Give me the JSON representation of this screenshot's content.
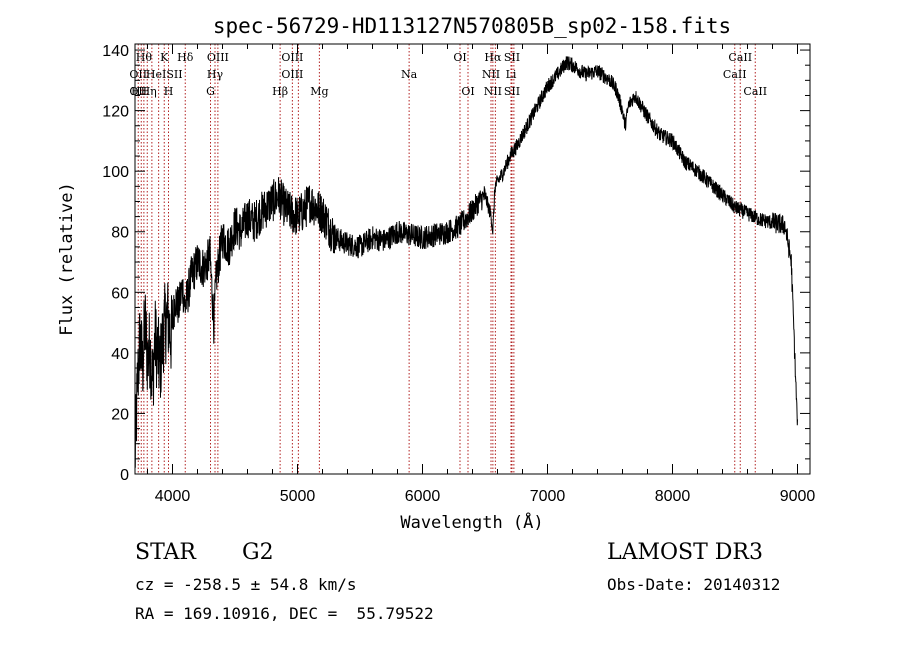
{
  "chart_data": {
    "type": "line",
    "title": "spec-56729-HD113127N570805B_sp02-158.fits",
    "xlabel": "Wavelength (Å)",
    "ylabel": "Flux (relative)",
    "xlim": [
      3700,
      9100
    ],
    "ylim": [
      0,
      142
    ],
    "xticks": [
      4000,
      5000,
      6000,
      7000,
      8000,
      9000
    ],
    "yticks": [
      0,
      20,
      40,
      60,
      80,
      100,
      120,
      140
    ],
    "series": [
      {
        "name": "spectrum",
        "x": [
          3700,
          3720,
          3740,
          3760,
          3780,
          3800,
          3820,
          3840,
          3860,
          3880,
          3900,
          3930,
          3960,
          3990,
          4020,
          4050,
          4080,
          4100,
          4150,
          4200,
          4250,
          4300,
          4330,
          4350,
          4400,
          4450,
          4500,
          4550,
          4600,
          4650,
          4700,
          4750,
          4800,
          4850,
          4900,
          4950,
          5000,
          5050,
          5100,
          5150,
          5200,
          5300,
          5400,
          5500,
          5600,
          5700,
          5800,
          5900,
          6000,
          6100,
          6200,
          6300,
          6400,
          6450,
          6500,
          6550,
          6563,
          6580,
          6650,
          6700,
          6750,
          6800,
          6900,
          7000,
          7100,
          7150,
          7200,
          7300,
          7400,
          7500,
          7550,
          7600,
          7620,
          7650,
          7700,
          7800,
          7900,
          8000,
          8100,
          8200,
          8300,
          8400,
          8500,
          8600,
          8700,
          8800,
          8900,
          8950,
          9000
        ],
        "values": [
          5,
          30,
          45,
          35,
          50,
          38,
          42,
          30,
          45,
          40,
          35,
          48,
          52,
          45,
          58,
          55,
          62,
          55,
          65,
          70,
          68,
          72,
          50,
          65,
          78,
          75,
          82,
          80,
          85,
          83,
          86,
          88,
          90,
          92,
          88,
          86,
          85,
          87,
          90,
          88,
          86,
          78,
          76,
          75,
          78,
          77,
          80,
          79,
          78,
          79,
          80,
          82,
          87,
          90,
          92,
          85,
          80,
          95,
          100,
          105,
          108,
          112,
          120,
          128,
          133,
          136,
          135,
          132,
          133,
          130,
          127,
          120,
          115,
          122,
          125,
          118,
          112,
          110,
          103,
          100,
          96,
          92,
          88,
          86,
          84,
          83,
          82,
          70,
          15
        ]
      }
    ],
    "lines": [
      {
        "wave": 3726,
        "labels": [
          {
            "text": "OII",
            "row": 2
          },
          {
            "text": "OII",
            "row": 3
          }
        ]
      },
      {
        "wave": 3750,
        "labels": []
      },
      {
        "wave": 3771,
        "labels": [
          {
            "text": "Hθ",
            "row": 1
          },
          {
            "text": "HHη",
            "row": 3
          }
        ]
      },
      {
        "wave": 3798,
        "labels": []
      },
      {
        "wave": 3835,
        "labels": []
      },
      {
        "wave": 3889,
        "labels": []
      },
      {
        "wave": 3934,
        "labels": [
          {
            "text": "K",
            "row": 1
          },
          {
            "text": "HeISII",
            "row": 2
          }
        ]
      },
      {
        "wave": 3968,
        "labels": [
          {
            "text": "H",
            "row": 3
          }
        ]
      },
      {
        "wave": 4102,
        "labels": [
          {
            "text": "Hδ",
            "row": 1
          }
        ]
      },
      {
        "wave": 4304,
        "labels": [
          {
            "text": "G",
            "row": 3
          }
        ]
      },
      {
        "wave": 4340,
        "labels": [
          {
            "text": "Hγ",
            "row": 2
          }
        ]
      },
      {
        "wave": 4363,
        "labels": [
          {
            "text": "OIII",
            "row": 1
          }
        ]
      },
      {
        "wave": 4861,
        "labels": [
          {
            "text": "Hβ",
            "row": 3
          }
        ]
      },
      {
        "wave": 4959,
        "labels": [
          {
            "text": "OIII",
            "row": 1
          },
          {
            "text": "OIII",
            "row": 2
          }
        ]
      },
      {
        "wave": 5007,
        "labels": []
      },
      {
        "wave": 5175,
        "labels": [
          {
            "text": "Mg",
            "row": 3
          }
        ]
      },
      {
        "wave": 5893,
        "labels": [
          {
            "text": "Na",
            "row": 2
          }
        ]
      },
      {
        "wave": 6300,
        "labels": [
          {
            "text": "OI",
            "row": 1
          }
        ]
      },
      {
        "wave": 6364,
        "labels": [
          {
            "text": "OI",
            "row": 3
          }
        ]
      },
      {
        "wave": 6548,
        "labels": [
          {
            "text": "NII",
            "row": 2
          }
        ]
      },
      {
        "wave": 6563,
        "labels": [
          {
            "text": "Hα",
            "row": 1
          },
          {
            "text": "NII",
            "row": 3
          }
        ]
      },
      {
        "wave": 6583,
        "labels": []
      },
      {
        "wave": 6708,
        "labels": [
          {
            "text": "Li",
            "row": 2
          }
        ]
      },
      {
        "wave": 6716,
        "labels": [
          {
            "text": "SII",
            "row": 1
          },
          {
            "text": "SII",
            "row": 3
          }
        ]
      },
      {
        "wave": 6731,
        "labels": []
      },
      {
        "wave": 8498,
        "labels": [
          {
            "text": "CaII",
            "row": 2
          }
        ]
      },
      {
        "wave": 8542,
        "labels": [
          {
            "text": "CaII",
            "row": 1
          }
        ]
      },
      {
        "wave": 8662,
        "labels": [
          {
            "text": "CaII",
            "row": 3
          }
        ]
      }
    ]
  },
  "info": {
    "class": "STAR",
    "subclass": "G2",
    "survey": "LAMOST DR3",
    "cz": "cz = -258.5 ± 54.8 km/s",
    "obs_date": "Obs-Date: 20140312",
    "radec": "RA = 169.10916, DEC =  55.79522"
  },
  "colors": {
    "line_markers": "#b22222",
    "spectrum": "#000000"
  }
}
